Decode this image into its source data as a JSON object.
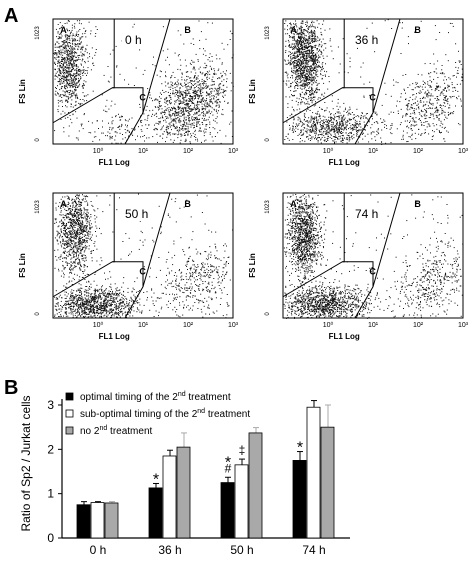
{
  "panels": {
    "a": {
      "letter": "A"
    },
    "b": {
      "letter": "B"
    }
  },
  "chart_data": [
    {
      "type": "scatter",
      "panel": "A",
      "label": "0 h",
      "xlabel": "FL1 Log",
      "ylabel": "FS Lin",
      "x_ticks": [
        "10⁰",
        "10¹",
        "10²",
        "10³"
      ],
      "y_ticks": [
        "1023",
        "0"
      ],
      "x_scale": "log",
      "xlim": [
        0.1,
        1000
      ],
      "ylim": [
        0,
        1023
      ],
      "gates": [
        "A",
        "B",
        "C"
      ],
      "clusters": [
        {
          "gate": "A",
          "x_center": 0.22,
          "y_center": 640,
          "density": 900
        },
        {
          "gate": "B",
          "x_center": 110,
          "y_center": 330,
          "density": 1100
        },
        {
          "gate": "C",
          "x_center": 3,
          "y_center": 120,
          "density": 120
        }
      ]
    },
    {
      "type": "scatter",
      "panel": "A",
      "label": "36 h",
      "xlabel": "FL1 Log",
      "ylabel": "FS Lin",
      "x_ticks": [
        "10⁰",
        "10¹",
        "10²",
        "10³"
      ],
      "y_ticks": [
        "1023",
        "0"
      ],
      "x_scale": "log",
      "xlim": [
        0.1,
        1000
      ],
      "ylim": [
        0,
        1023
      ],
      "gates": [
        "A",
        "B",
        "C"
      ],
      "clusters": [
        {
          "gate": "A",
          "x_center": 0.3,
          "y_center": 700,
          "density": 1300
        },
        {
          "gate": "B",
          "x_center": 180,
          "y_center": 320,
          "density": 450
        },
        {
          "gate": "C",
          "x_center": 1.2,
          "y_center": 140,
          "density": 700
        }
      ]
    },
    {
      "type": "scatter",
      "panel": "A",
      "label": "50 h",
      "xlabel": "FL1 Log",
      "ylabel": "FS Lin",
      "x_ticks": [
        "10⁰",
        "10¹",
        "10²",
        "10³"
      ],
      "y_ticks": [
        "1023",
        "0"
      ],
      "x_scale": "log",
      "xlim": [
        0.1,
        1000
      ],
      "ylim": [
        0,
        1023
      ],
      "gates": [
        "A",
        "B",
        "C"
      ],
      "clusters": [
        {
          "gate": "A",
          "x_center": 0.3,
          "y_center": 720,
          "density": 1000
        },
        {
          "gate": "B",
          "x_center": 150,
          "y_center": 300,
          "density": 380
        },
        {
          "gate": "C",
          "x_center": 0.8,
          "y_center": 110,
          "density": 1100
        }
      ]
    },
    {
      "type": "scatter",
      "panel": "A",
      "label": "74 h",
      "xlabel": "FL1 Log",
      "ylabel": "FS Lin",
      "x_ticks": [
        "10⁰",
        "10¹",
        "10²",
        "10³"
      ],
      "y_ticks": [
        "1023",
        "0"
      ],
      "x_scale": "log",
      "xlim": [
        0.1,
        1000
      ],
      "ylim": [
        0,
        1023
      ],
      "gates": [
        "A",
        "B",
        "C"
      ],
      "clusters": [
        {
          "gate": "A",
          "x_center": 0.28,
          "y_center": 680,
          "density": 1100
        },
        {
          "gate": "B",
          "x_center": 200,
          "y_center": 300,
          "density": 400
        },
        {
          "gate": "C",
          "x_center": 0.9,
          "y_center": 120,
          "density": 1100
        }
      ]
    },
    {
      "type": "bar",
      "panel": "B",
      "categories": [
        "0 h",
        "36 h",
        "50 h",
        "74 h"
      ],
      "ylabel": "Ratio of Sp2 / Jurkat cells",
      "ylim": [
        0,
        3
      ],
      "y_ticks": [
        0,
        1,
        2,
        3
      ],
      "legend_position": "top-left",
      "series": [
        {
          "legend_text": "optimal timing of the ",
          "legend_sup": "nd",
          "legend_ord": "2",
          "legend_tail": " treatment",
          "color": "#000000",
          "values": [
            0.75,
            1.13,
            1.25,
            1.75
          ],
          "errors": [
            0.07,
            0.1,
            0.12,
            0.2
          ],
          "annotations": [
            "",
            "*",
            "*\n#",
            "*"
          ]
        },
        {
          "legend_text": "sub-optimal timing of the ",
          "legend_sup": "nd",
          "legend_ord": "2",
          "legend_tail": " treatment",
          "color": "#ffffff",
          "values": [
            0.8,
            1.85,
            1.65,
            2.95
          ],
          "errors": [
            0.02,
            0.13,
            0.13,
            0.15
          ],
          "annotations": [
            "",
            "",
            "‡",
            ""
          ]
        },
        {
          "legend_text": "no 2",
          "legend_sup": "nd",
          "legend_ord": "",
          "legend_tail": " treatment",
          "color": "#a9a9a9",
          "values": [
            0.79,
            2.05,
            2.37,
            2.5
          ],
          "errors": [
            0.03,
            0.32,
            0.12,
            0.5
          ],
          "annotations": [
            "",
            "",
            "",
            ""
          ]
        }
      ]
    }
  ]
}
